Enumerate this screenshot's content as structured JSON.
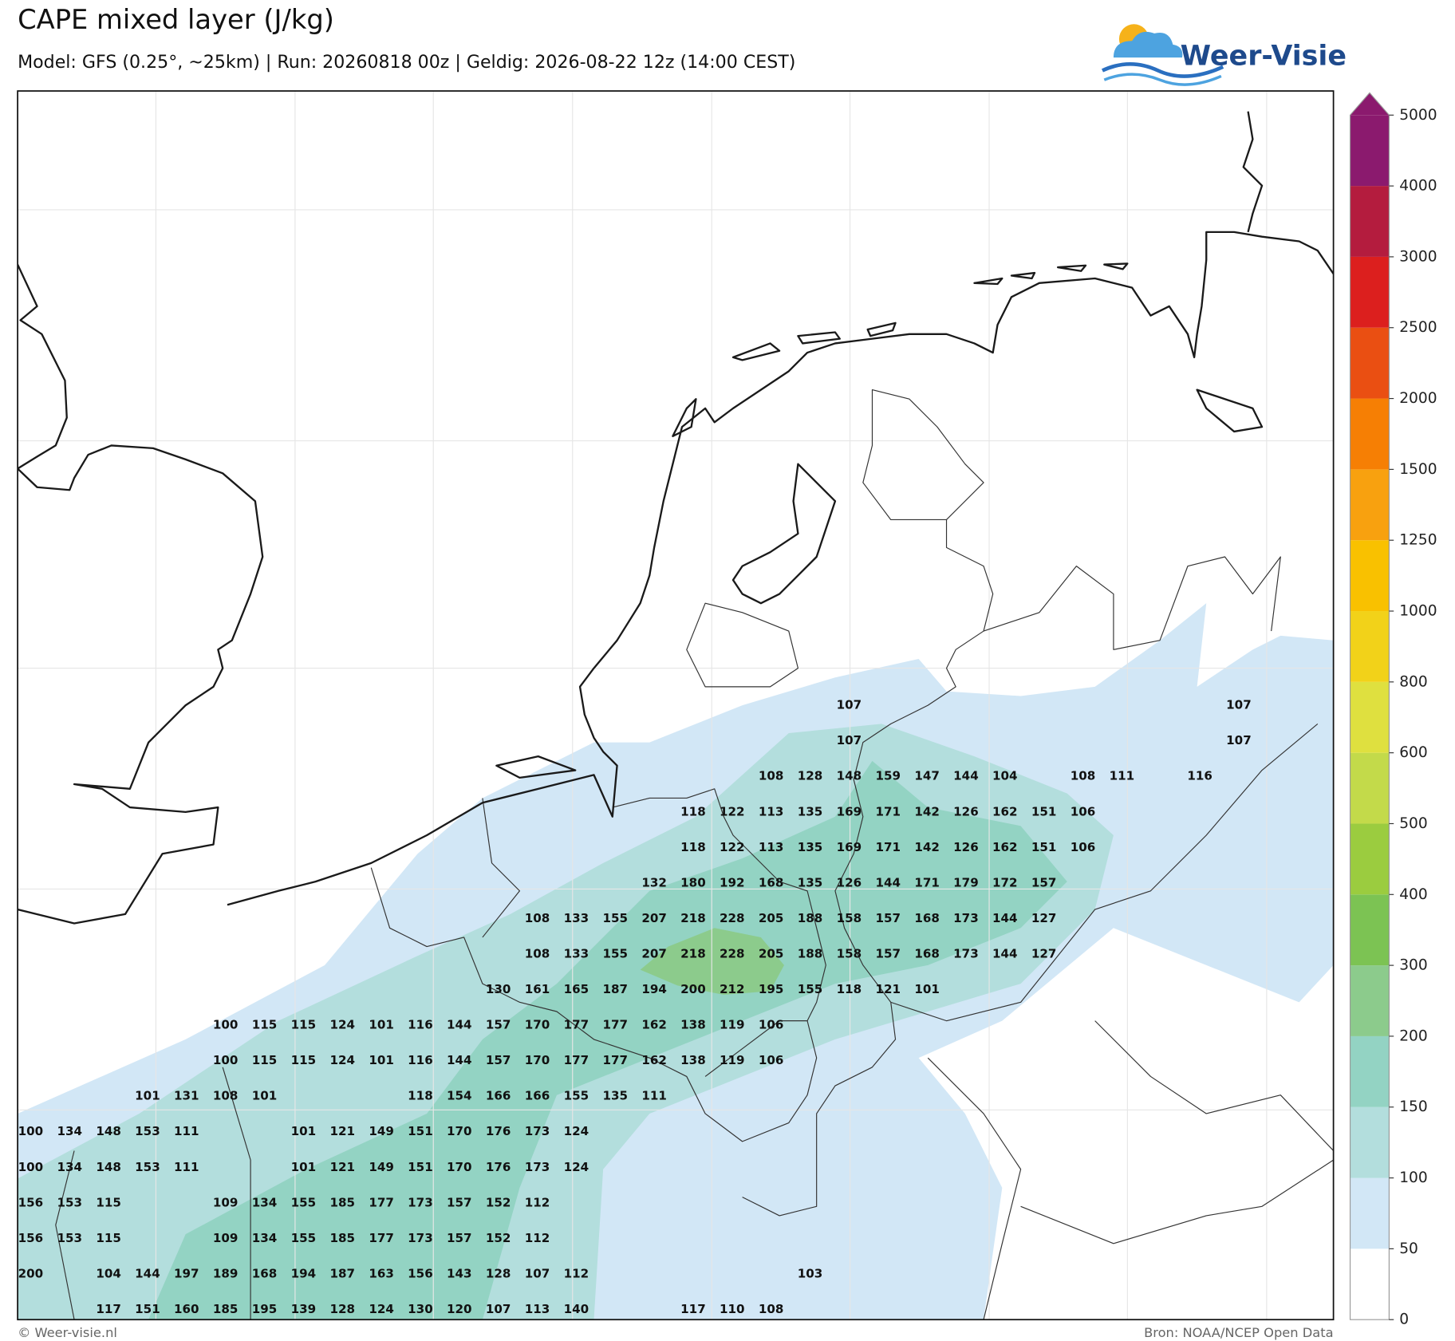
{
  "header": {
    "title": "CAPE mixed layer (J/kg)",
    "subtitle": "Model: GFS (0.25°, ~25km)  |  Run: 20260818 00z  |  Geldig: 2026-08-22 12z (14:00 CEST)",
    "logo": "Weer-Visie"
  },
  "colorbar": {
    "levels": [
      0,
      50,
      100,
      150,
      200,
      300,
      400,
      500,
      600,
      800,
      1000,
      1250,
      1500,
      2000,
      2500,
      3000,
      4000,
      5000
    ],
    "colors": [
      "#ffffff",
      "#d2e7f6",
      "#b3dedd",
      "#93d3c3",
      "#8ccb8c",
      "#7cc353",
      "#9bcc3f",
      "#c3da4a",
      "#dfe03f",
      "#f2d219",
      "#f9c100",
      "#f8a10f",
      "#f67f04",
      "#ea4f12",
      "#dc1f1e",
      "#b41c3e",
      "#8b1a6e"
    ],
    "extend_color": "#8b1a6e"
  },
  "map_labels": {
    "rows": [
      [
        null,
        null,
        null,
        null,
        null,
        null,
        null,
        null,
        null,
        null,
        null,
        null,
        null,
        null,
        null,
        null,
        null,
        null,
        null,
        null,
        null,
        107,
        null,
        null,
        null,
        null,
        null,
        null,
        null,
        null,
        null,
        107
      ],
      [
        null,
        null,
        null,
        null,
        null,
        null,
        null,
        null,
        null,
        null,
        null,
        null,
        null,
        null,
        null,
        null,
        null,
        null,
        null,
        null,
        null,
        107,
        null,
        null,
        null,
        null,
        null,
        null,
        null,
        null,
        null,
        107
      ],
      [
        null,
        null,
        null,
        null,
        null,
        null,
        null,
        null,
        null,
        null,
        null,
        null,
        null,
        null,
        null,
        null,
        null,
        null,
        null,
        108,
        128,
        148,
        159,
        147,
        144,
        104,
        null,
        108,
        111,
        null,
        116
      ],
      [
        null,
        null,
        null,
        null,
        null,
        null,
        null,
        null,
        null,
        null,
        null,
        null,
        null,
        null,
        null,
        null,
        null,
        118,
        122,
        113,
        135,
        169,
        171,
        142,
        126,
        162,
        151,
        106
      ],
      [
        null,
        null,
        null,
        null,
        null,
        null,
        null,
        null,
        null,
        null,
        null,
        null,
        null,
        null,
        null,
        null,
        null,
        118,
        122,
        113,
        135,
        169,
        171,
        142,
        126,
        162,
        151,
        106
      ],
      [
        null,
        null,
        null,
        null,
        null,
        null,
        null,
        null,
        null,
        null,
        null,
        null,
        null,
        null,
        null,
        null,
        132,
        180,
        192,
        168,
        135,
        126,
        144,
        171,
        179,
        172,
        157
      ],
      [
        null,
        null,
        null,
        null,
        null,
        null,
        null,
        null,
        null,
        null,
        null,
        null,
        null,
        108,
        133,
        155,
        207,
        218,
        228,
        205,
        188,
        158,
        157,
        168,
        173,
        144,
        127
      ],
      [
        null,
        null,
        null,
        null,
        null,
        null,
        null,
        null,
        null,
        null,
        null,
        null,
        null,
        108,
        133,
        155,
        207,
        218,
        228,
        205,
        188,
        158,
        157,
        168,
        173,
        144,
        127
      ],
      [
        null,
        null,
        null,
        null,
        null,
        null,
        null,
        null,
        null,
        null,
        null,
        null,
        130,
        161,
        165,
        187,
        194,
        200,
        212,
        195,
        155,
        118,
        121,
        101
      ],
      [
        null,
        null,
        null,
        null,
        null,
        100,
        115,
        115,
        124,
        101,
        116,
        144,
        157,
        170,
        177,
        177,
        162,
        138,
        119,
        106
      ],
      [
        null,
        null,
        null,
        null,
        null,
        100,
        115,
        115,
        124,
        101,
        116,
        144,
        157,
        170,
        177,
        177,
        162,
        138,
        119,
        106
      ],
      [
        null,
        null,
        null,
        101,
        131,
        108,
        101,
        null,
        null,
        null,
        118,
        154,
        166,
        166,
        155,
        135,
        111
      ],
      [
        100,
        134,
        148,
        153,
        111,
        null,
        null,
        101,
        121,
        149,
        151,
        170,
        176,
        173,
        124
      ],
      [
        100,
        134,
        148,
        153,
        111,
        null,
        null,
        101,
        121,
        149,
        151,
        170,
        176,
        173,
        124
      ],
      [
        156,
        153,
        115,
        null,
        null,
        109,
        134,
        155,
        185,
        177,
        173,
        157,
        152,
        112
      ],
      [
        156,
        153,
        115,
        null,
        null,
        109,
        134,
        155,
        185,
        177,
        173,
        157,
        152,
        112
      ],
      [
        200,
        null,
        104,
        144,
        197,
        189,
        168,
        194,
        187,
        163,
        156,
        143,
        128,
        107,
        112,
        null,
        null,
        null,
        null,
        null,
        103
      ],
      [
        null,
        null,
        117,
        151,
        160,
        185,
        195,
        139,
        128,
        124,
        130,
        120,
        107,
        113,
        140,
        null,
        null,
        117,
        110,
        108
      ]
    ]
  },
  "footer": {
    "left": "© Weer-visie.nl",
    "right": "Bron: NOAA/NCEP Open Data"
  }
}
